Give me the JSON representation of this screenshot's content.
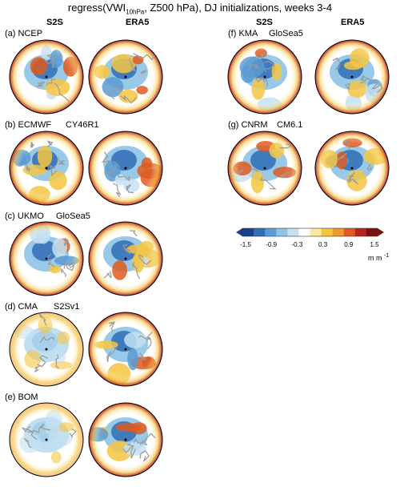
{
  "figure": {
    "title_prefix": "regress(VWI",
    "title_sub": "10hPa",
    "title_suffix": ", Z500 hPa), DJ initializations, weeks 3-4"
  },
  "columns": {
    "left_s2s": "S2S",
    "left_era5": "ERA5",
    "right_s2s": "S2S",
    "right_era5": "ERA5"
  },
  "panels": [
    {
      "label": "(a) NCEP",
      "model": ""
    },
    {
      "label": "(b) ECMWF",
      "model": "CY46R1"
    },
    {
      "label": "(c) UKMO",
      "model": "GloSea5"
    },
    {
      "label": "(d) CMA",
      "model": "S2Sv1"
    },
    {
      "label": "(e) BOM",
      "model": ""
    },
    {
      "label": "(f) KMA",
      "model": "GloSea5"
    },
    {
      "label": "(g) CNRM",
      "model": "CM6.1"
    }
  ],
  "colorbar": {
    "ticks": [
      "-1.5",
      "-0.9",
      "-0.3",
      "0.3",
      "0.9",
      "1.5"
    ],
    "unit": "m m",
    "unit_exp": "-1",
    "colors": [
      "#1a3f8f",
      "#2f6db5",
      "#5a9bd1",
      "#8ec3e6",
      "#c4e1f2",
      "#ffffff",
      "#fbe8a0",
      "#f5c542",
      "#ee9a2c",
      "#de5a1f",
      "#b8221c",
      "#7d0f12"
    ]
  }
}
